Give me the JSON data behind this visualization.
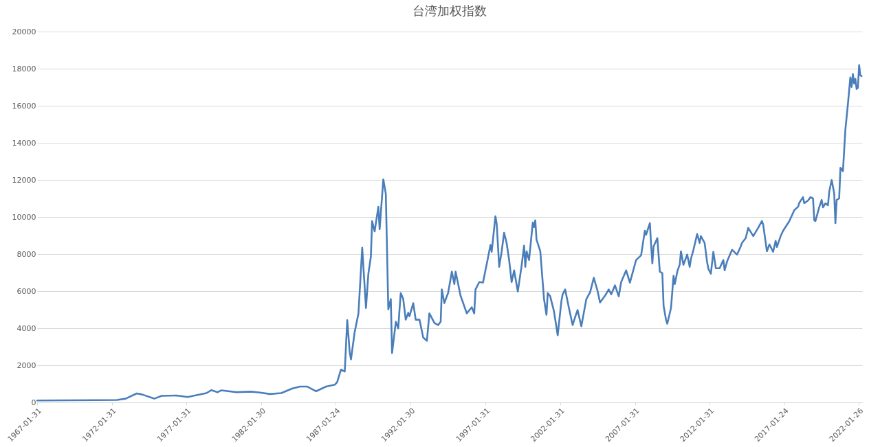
{
  "chart_data": {
    "type": "line",
    "title": "台湾加权指数",
    "x": [
      "1967-01-31",
      "1969-01",
      "1971-01",
      "1972-06",
      "1973-01",
      "1973-10",
      "1974-02",
      "1974-12",
      "1975-06",
      "1976-06",
      "1977-03",
      "1977-06",
      "1978-06",
      "1978-10",
      "1979-03",
      "1979-06",
      "1980-06",
      "1981-06",
      "1982-01",
      "1982-09",
      "1983-06",
      "1984-03",
      "1984-09",
      "1985-03",
      "1985-10",
      "1986-06",
      "1987-01",
      "1987-03",
      "1987-06",
      "1987-09",
      "1987-11",
      "1988-01",
      "1988-02",
      "1988-05",
      "1988-08",
      "1988-11",
      "1989-01",
      "1989-02",
      "1989-04",
      "1989-06",
      "1989-07",
      "1989-09",
      "1989-12",
      "1990-01",
      "1990-04",
      "1990-06",
      "1990-08",
      "1990-10",
      "1990-11",
      "1991-02",
      "1991-04",
      "1991-05",
      "1991-06",
      "1991-08",
      "1991-10",
      "1991-12",
      "1992-01",
      "1992-04",
      "1992-06",
      "1992-09",
      "1992-12",
      "1993-03",
      "1993-05",
      "1993-09",
      "1993-12",
      "1994-02",
      "1994-03",
      "1994-05",
      "1994-07",
      "1994-08",
      "1994-11",
      "1995-01",
      "1995-02",
      "1995-06",
      "1995-11",
      "1996-03",
      "1996-05",
      "1996-06",
      "1996-09",
      "1996-12",
      "1997-04",
      "1997-06",
      "1997-07",
      "1997-10",
      "1997-11",
      "1998-01",
      "1998-03",
      "1998-05",
      "1998-07",
      "1998-09",
      "1998-11",
      "1999-01",
      "1999-04",
      "1999-07",
      "1999-09",
      "1999-10",
      "1999-11",
      "2000-01",
      "2000-04",
      "2000-05",
      "2000-06",
      "2000-07",
      "2000-10",
      "2001-01",
      "2001-03",
      "2001-04",
      "2001-06",
      "2001-09",
      "2001-12",
      "2002-03",
      "2002-04",
      "2002-06",
      "2002-09",
      "2002-12",
      "2003-02",
      "2003-04",
      "2003-07",
      "2003-11",
      "2004-02",
      "2004-05",
      "2004-08",
      "2004-10",
      "2005-02",
      "2005-05",
      "2005-07",
      "2005-10",
      "2006-01",
      "2006-03",
      "2006-07",
      "2006-10",
      "2007-03",
      "2007-07",
      "2007-10",
      "2007-11",
      "2008-02",
      "2008-03",
      "2008-04",
      "2008-05",
      "2008-08",
      "2008-10",
      "2008-12",
      "2009-01",
      "2009-03",
      "2009-04",
      "2009-07",
      "2009-09",
      "2009-10",
      "2009-12",
      "2010-02",
      "2010-03",
      "2010-05",
      "2010-08",
      "2010-10",
      "2010-11",
      "2011-01",
      "2011-04",
      "2011-06",
      "2011-07",
      "2011-10",
      "2011-12",
      "2012-01",
      "2012-03",
      "2012-05",
      "2012-07",
      "2012-10",
      "2013-01",
      "2013-02",
      "2013-04",
      "2013-08",
      "2013-12",
      "2014-03",
      "2014-04",
      "2014-07",
      "2014-09",
      "2015-01",
      "2015-05",
      "2015-08",
      "2015-09",
      "2015-12",
      "2016-02",
      "2016-05",
      "2016-07",
      "2016-08",
      "2016-11",
      "2017-01",
      "2017-06",
      "2017-10",
      "2018-01",
      "2018-02",
      "2018-05",
      "2018-06",
      "2018-09",
      "2018-11",
      "2019-01",
      "2019-02",
      "2019-03",
      "2019-06",
      "2019-08",
      "2019-09",
      "2019-11",
      "2020-01",
      "2020-02",
      "2020-04",
      "2020-06",
      "2020-07",
      "2020-08",
      "2020-10",
      "2020-11",
      "2021-01",
      "2021-03",
      "2021-05",
      "2021-07",
      "2021-08",
      "2021-09",
      "2021-10",
      "2021-11",
      "2021-12",
      "2022-01",
      "2022-02",
      "2022-03",
      "2022-04"
    ],
    "series": [
      {
        "color": "#4a7ebb",
        "values": [
          100,
          110,
          120,
          130,
          200,
          480,
          430,
          200,
          350,
          370,
          290,
          330,
          500,
          660,
          550,
          650,
          550,
          580,
          530,
          450,
          500,
          750,
          850,
          850,
          600,
          850,
          950,
          1100,
          1770,
          1660,
          4430,
          2690,
          2320,
          3800,
          4800,
          8340,
          6200,
          5090,
          6940,
          7860,
          9780,
          9220,
          10550,
          9340,
          12030,
          11250,
          5020,
          5570,
          2660,
          4350,
          3990,
          4980,
          5900,
          5570,
          4460,
          4830,
          4650,
          5350,
          4460,
          4460,
          3500,
          3320,
          4800,
          4280,
          4170,
          4350,
          6090,
          5350,
          5720,
          5900,
          7050,
          6380,
          7050,
          5760,
          4800,
          5130,
          4800,
          6090,
          6490,
          6460,
          7790,
          8490,
          8120,
          10040,
          9630,
          7310,
          8120,
          9150,
          8600,
          7680,
          6490,
          7120,
          5980,
          7340,
          8450,
          7310,
          8150,
          7680,
          9700,
          9450,
          9820,
          8780,
          8150,
          5570,
          4720,
          5900,
          5720,
          4910,
          3620,
          5460,
          5830,
          6090,
          5090,
          4170,
          4610,
          4980,
          4100,
          5570,
          5940,
          6720,
          6010,
          5390,
          5760,
          6090,
          5830,
          6310,
          5720,
          6490,
          7120,
          6460,
          7680,
          7930,
          9260,
          9040,
          9670,
          8520,
          7490,
          8410,
          8860,
          7050,
          6970,
          5200,
          4460,
          4240,
          5090,
          6830,
          6380,
          7050,
          7450,
          8150,
          7420,
          7970,
          7310,
          7750,
          8230,
          9080,
          8600,
          8970,
          8600,
          7560,
          7200,
          6940,
          8120,
          7230,
          7230,
          7680,
          7120,
          7600,
          8230,
          7970,
          8410,
          8600,
          8860,
          9410,
          8970,
          9410,
          9780,
          9590,
          8150,
          8520,
          8120,
          8710,
          8380,
          8970,
          9260,
          9780,
          10370,
          10550,
          10770,
          11070,
          10740,
          10890,
          11070,
          11000,
          9820,
          9780,
          10520,
          10920,
          10520,
          10740,
          10630,
          11370,
          11990,
          11290,
          9670,
          10920,
          11000,
          12660,
          12470,
          14690,
          16050,
          17530,
          17010,
          17710,
          17200,
          17450,
          16900,
          16970,
          18190,
          17640,
          17600
        ]
      }
    ],
    "xlim": [
      "1967-01-31",
      "2022-04-15"
    ],
    "xticks": [
      {
        "value": "1967-01-31",
        "label": "1967-01-31"
      },
      {
        "value": "1972-01-31",
        "label": "1972-01-31"
      },
      {
        "value": "1977-01-31",
        "label": "1977-01-31"
      },
      {
        "value": "1982-01-30",
        "label": "1982-01-30"
      },
      {
        "value": "1987-01-24",
        "label": "1987-01-24"
      },
      {
        "value": "1992-01-30",
        "label": "1992-01-30"
      },
      {
        "value": "1997-01-31",
        "label": "1997-01-31"
      },
      {
        "value": "2002-01-31",
        "label": "2002-01-31"
      },
      {
        "value": "2007-01-31",
        "label": "2007-01-31"
      },
      {
        "value": "2012-01-31",
        "label": "2012-01-31"
      },
      {
        "value": "2017-01-24",
        "label": "2017-01-24"
      },
      {
        "value": "2022-01-26",
        "label": "2022-01-26"
      }
    ],
    "ylim": [
      0,
      20000
    ],
    "yticks": [
      0,
      2000,
      4000,
      6000,
      8000,
      10000,
      12000,
      14000,
      16000,
      18000,
      20000
    ],
    "grid": "y"
  }
}
